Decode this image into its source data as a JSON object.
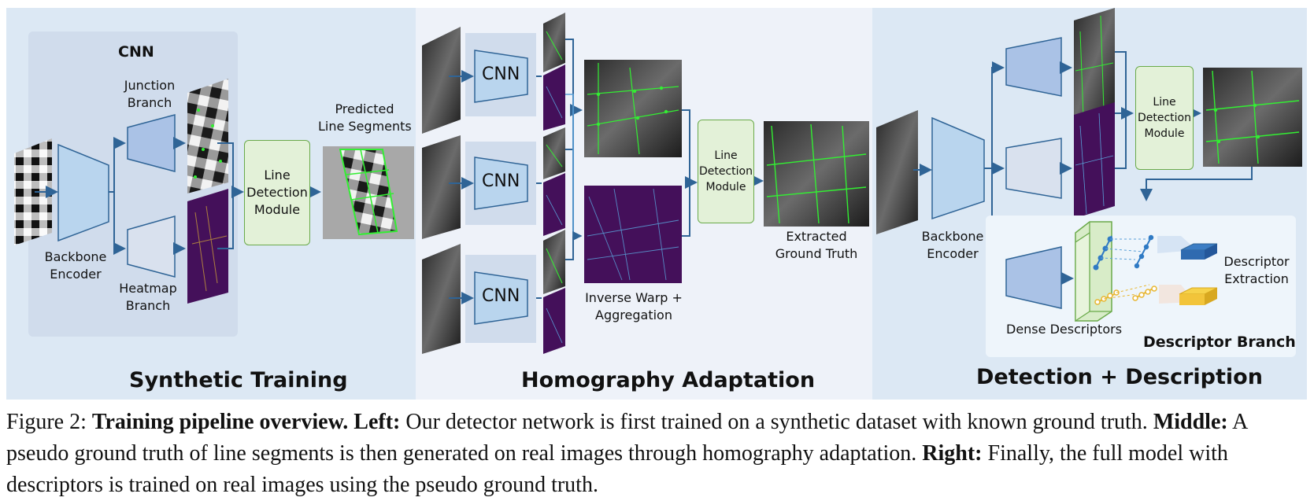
{
  "panels": {
    "left": {
      "title": "Synthetic Training",
      "cnn_title": "CNN",
      "junction_branch": [
        "Junction",
        "Branch"
      ],
      "backbone_encoder": [
        "Backbone",
        "Encoder"
      ],
      "heatmap_branch": [
        "Heatmap",
        "Branch"
      ],
      "line_detection_module": [
        "Line",
        "Detection",
        "Module"
      ],
      "predicted_line_segments": [
        "Predicted",
        "Line Segments"
      ]
    },
    "middle": {
      "title": "Homography Adaptation",
      "cnn_label": "CNN",
      "inverse_warp": [
        "Inverse Warp +",
        "Aggregation"
      ],
      "line_detection_module": [
        "Line",
        "Detection",
        "Module"
      ],
      "extracted_ground_truth": [
        "Extracted",
        "Ground Truth"
      ]
    },
    "right": {
      "title": "Detection + Description",
      "backbone_encoder": [
        "Backbone",
        "Encoder"
      ],
      "line_detection_module": [
        "Line",
        "Detection",
        "Module"
      ],
      "dense_descriptors": "Dense Descriptors",
      "descriptor_extraction": [
        "Descriptor",
        "Extraction"
      ],
      "descriptor_branch": "Descriptor Branch"
    }
  },
  "caption": {
    "figure_label": "Figure 2: ",
    "bold_title": "Training pipeline overview.",
    "left_label": "Left:",
    "left_text": " Our detector network is first trained on a synthetic dataset with known ground truth. ",
    "middle_label": "Middle:",
    "middle_text": " A pseudo ground truth of line segments is then generated on real images through homography adaptation. ",
    "right_label": "Right:",
    "right_text": " Finally, the full model with descriptors is trained on real images using the pseudo ground truth."
  },
  "colors": {
    "panel_bg": "#dce8f4",
    "encoder_fill": "#b9d5ee",
    "branch_fill": "#aac2e6",
    "heatmap_branch_fill": "#d9e1ee",
    "module_fill": "#e3f1d8",
    "arrow": "#2f6496",
    "heatmap_purple": "#44105a",
    "line_green": "#33ee33"
  }
}
